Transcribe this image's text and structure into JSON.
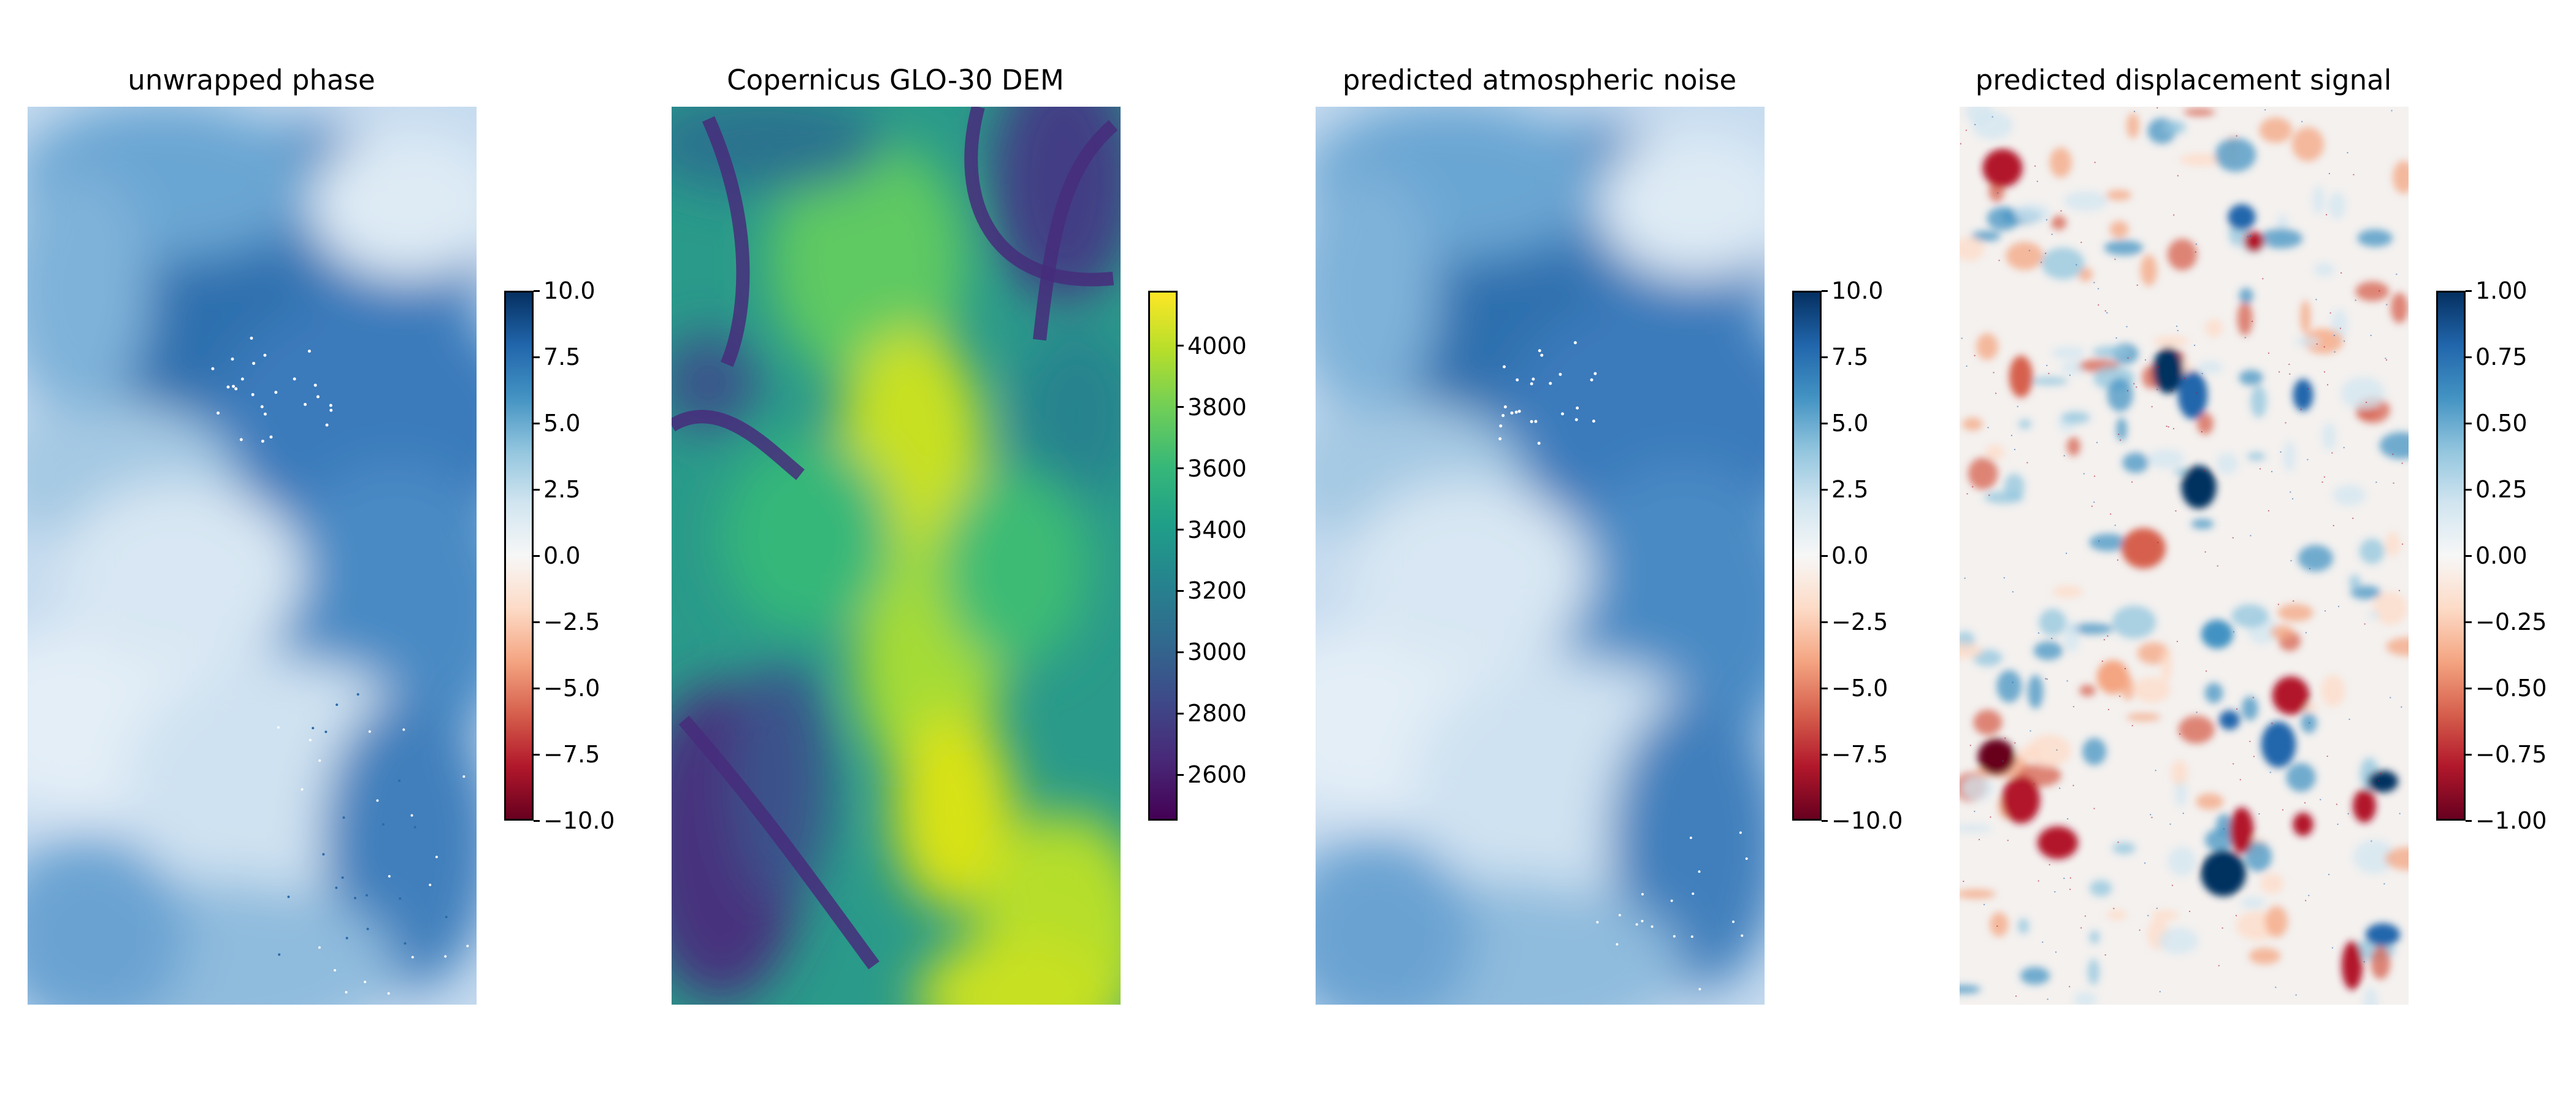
{
  "chart_data": [
    {
      "type": "heatmap",
      "title": "unwrapped phase",
      "colormap": "RdBu",
      "colorbar": {
        "range": [
          -10.0,
          10.0
        ],
        "ticks": [
          "10.0",
          "7.5",
          "5.0",
          "2.5",
          "0.0",
          "−2.5",
          "−5.0",
          "−7.5",
          "−10.0"
        ]
      },
      "texture": "phase"
    },
    {
      "type": "heatmap",
      "title": "Copernicus GLO-30 DEM",
      "colormap": "viridis",
      "colorbar": {
        "range": [
          2450,
          4180
        ],
        "ticks": [
          "4000",
          "3800",
          "3600",
          "3400",
          "3200",
          "3000",
          "2800",
          "2600"
        ]
      },
      "texture": "dem"
    },
    {
      "type": "heatmap",
      "title": "predicted atmospheric noise",
      "colormap": "RdBu",
      "colorbar": {
        "range": [
          -10.0,
          10.0
        ],
        "ticks": [
          "10.0",
          "7.5",
          "5.0",
          "2.5",
          "0.0",
          "−2.5",
          "−5.0",
          "−7.5",
          "−10.0"
        ]
      },
      "texture": "atmo"
    },
    {
      "type": "heatmap",
      "title": "predicted displacement signal",
      "colormap": "RdBu",
      "colorbar": {
        "range": [
          -1.0,
          1.0
        ],
        "ticks": [
          "1.00",
          "0.75",
          "0.50",
          "0.25",
          "0.00",
          "−0.25",
          "−0.50",
          "−0.75",
          "−1.00"
        ]
      },
      "texture": "disp"
    }
  ],
  "colors": {
    "rdbu_top": "#053061",
    "rdbu_mid": "#f7f7f7",
    "rdbu_bottom": "#67001f",
    "viridis_top": "#fde725",
    "viridis_bottom": "#440154"
  }
}
